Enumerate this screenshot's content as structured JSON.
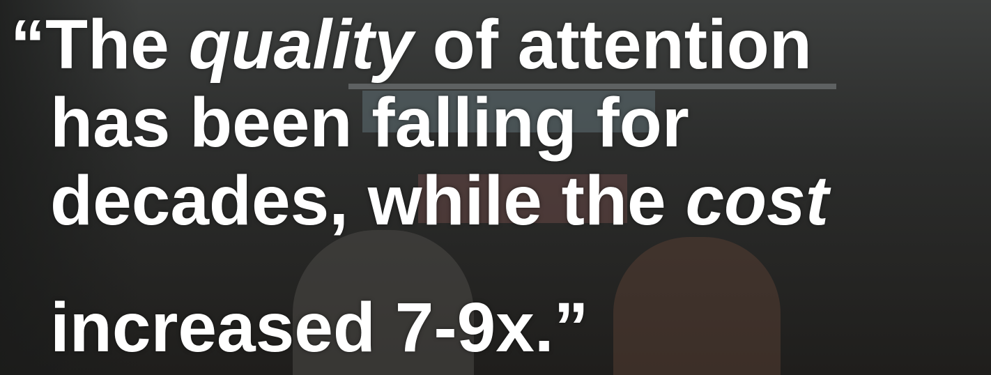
{
  "quote": {
    "lines": [
      [
        {
          "text": "“The "
        },
        {
          "text": "quality",
          "italic": true
        },
        {
          "text": " of attention"
        }
      ],
      [
        {
          "text": "has been falling for"
        }
      ],
      [
        {
          "text": "decades, while the "
        },
        {
          "text": "cost",
          "italic": true
        }
      ],
      [
        {
          "text": "increased 7-9x.”"
        }
      ]
    ]
  }
}
